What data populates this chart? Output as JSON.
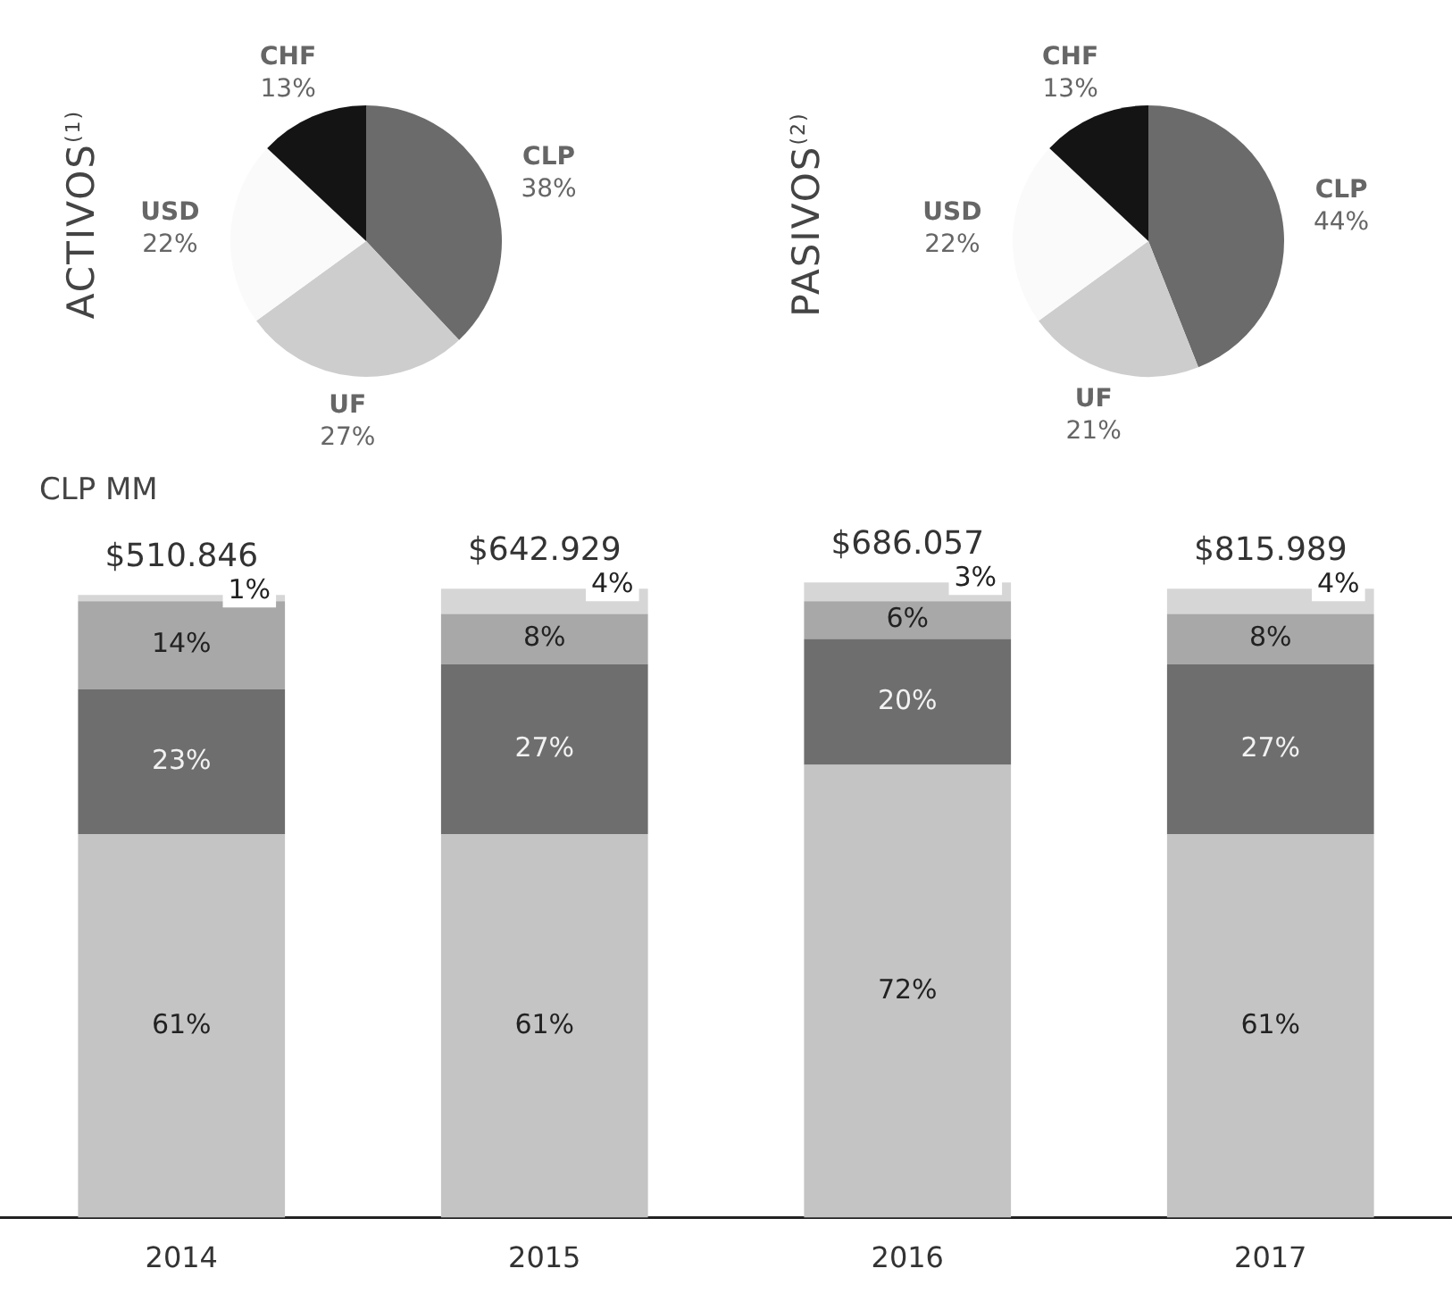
{
  "chart_data": [
    {
      "type": "pie",
      "title": "ACTIVOS$^{(1)}$",
      "categories": [
        "CLP",
        "UF",
        "USD",
        "CHF"
      ],
      "values": [
        38,
        27,
        22,
        13
      ],
      "colors": [
        "#6b6b6b",
        "#cdcdcd",
        "#fafafa",
        "#141414"
      ],
      "value_labels": [
        "38%",
        "27%",
        "22%",
        "13%"
      ],
      "legend": false
    },
    {
      "type": "pie",
      "title": "PASIVOS$^{(2)}$",
      "categories": [
        "CLP",
        "UF",
        "USD",
        "CHF"
      ],
      "values": [
        44,
        21,
        22,
        13
      ],
      "colors": [
        "#6b6b6b",
        "#cdcdcd",
        "#fafafa",
        "#141414"
      ],
      "value_labels": [
        "44%",
        "21%",
        "22%",
        "13%"
      ],
      "legend": false
    },
    {
      "type": "bar",
      "title": "CLP MM",
      "categories": [
        "2014",
        "2015",
        "2016",
        "2017"
      ],
      "stacked": true,
      "ylim": [
        0,
        105
      ],
      "tick_labels": "x",
      "legend": false,
      "grid": false,
      "series": [
        {
          "color": "#c4c4c4",
          "values": [
            61,
            61,
            72,
            61
          ],
          "value_labels": [
            "61%",
            "61%",
            "72%",
            "61%"
          ]
        },
        {
          "color": "#6e6e6e",
          "values": [
            23,
            27,
            20,
            27
          ],
          "value_labels": [
            "23%",
            "27%",
            "20%",
            "27%"
          ]
        },
        {
          "color": "#a8a8a8",
          "values": [
            14,
            8,
            6,
            8
          ],
          "value_labels": [
            "14%",
            "8%",
            "6%",
            "8%"
          ]
        },
        {
          "color": "#d6d6d6",
          "values": [
            1,
            4,
            3,
            4
          ],
          "value_labels": [
            "1%",
            "4%",
            "3%",
            "4%"
          ]
        }
      ],
      "annotations": [
        "$510.846",
        "$642.929",
        "$686.057",
        "$815.989"
      ]
    }
  ]
}
